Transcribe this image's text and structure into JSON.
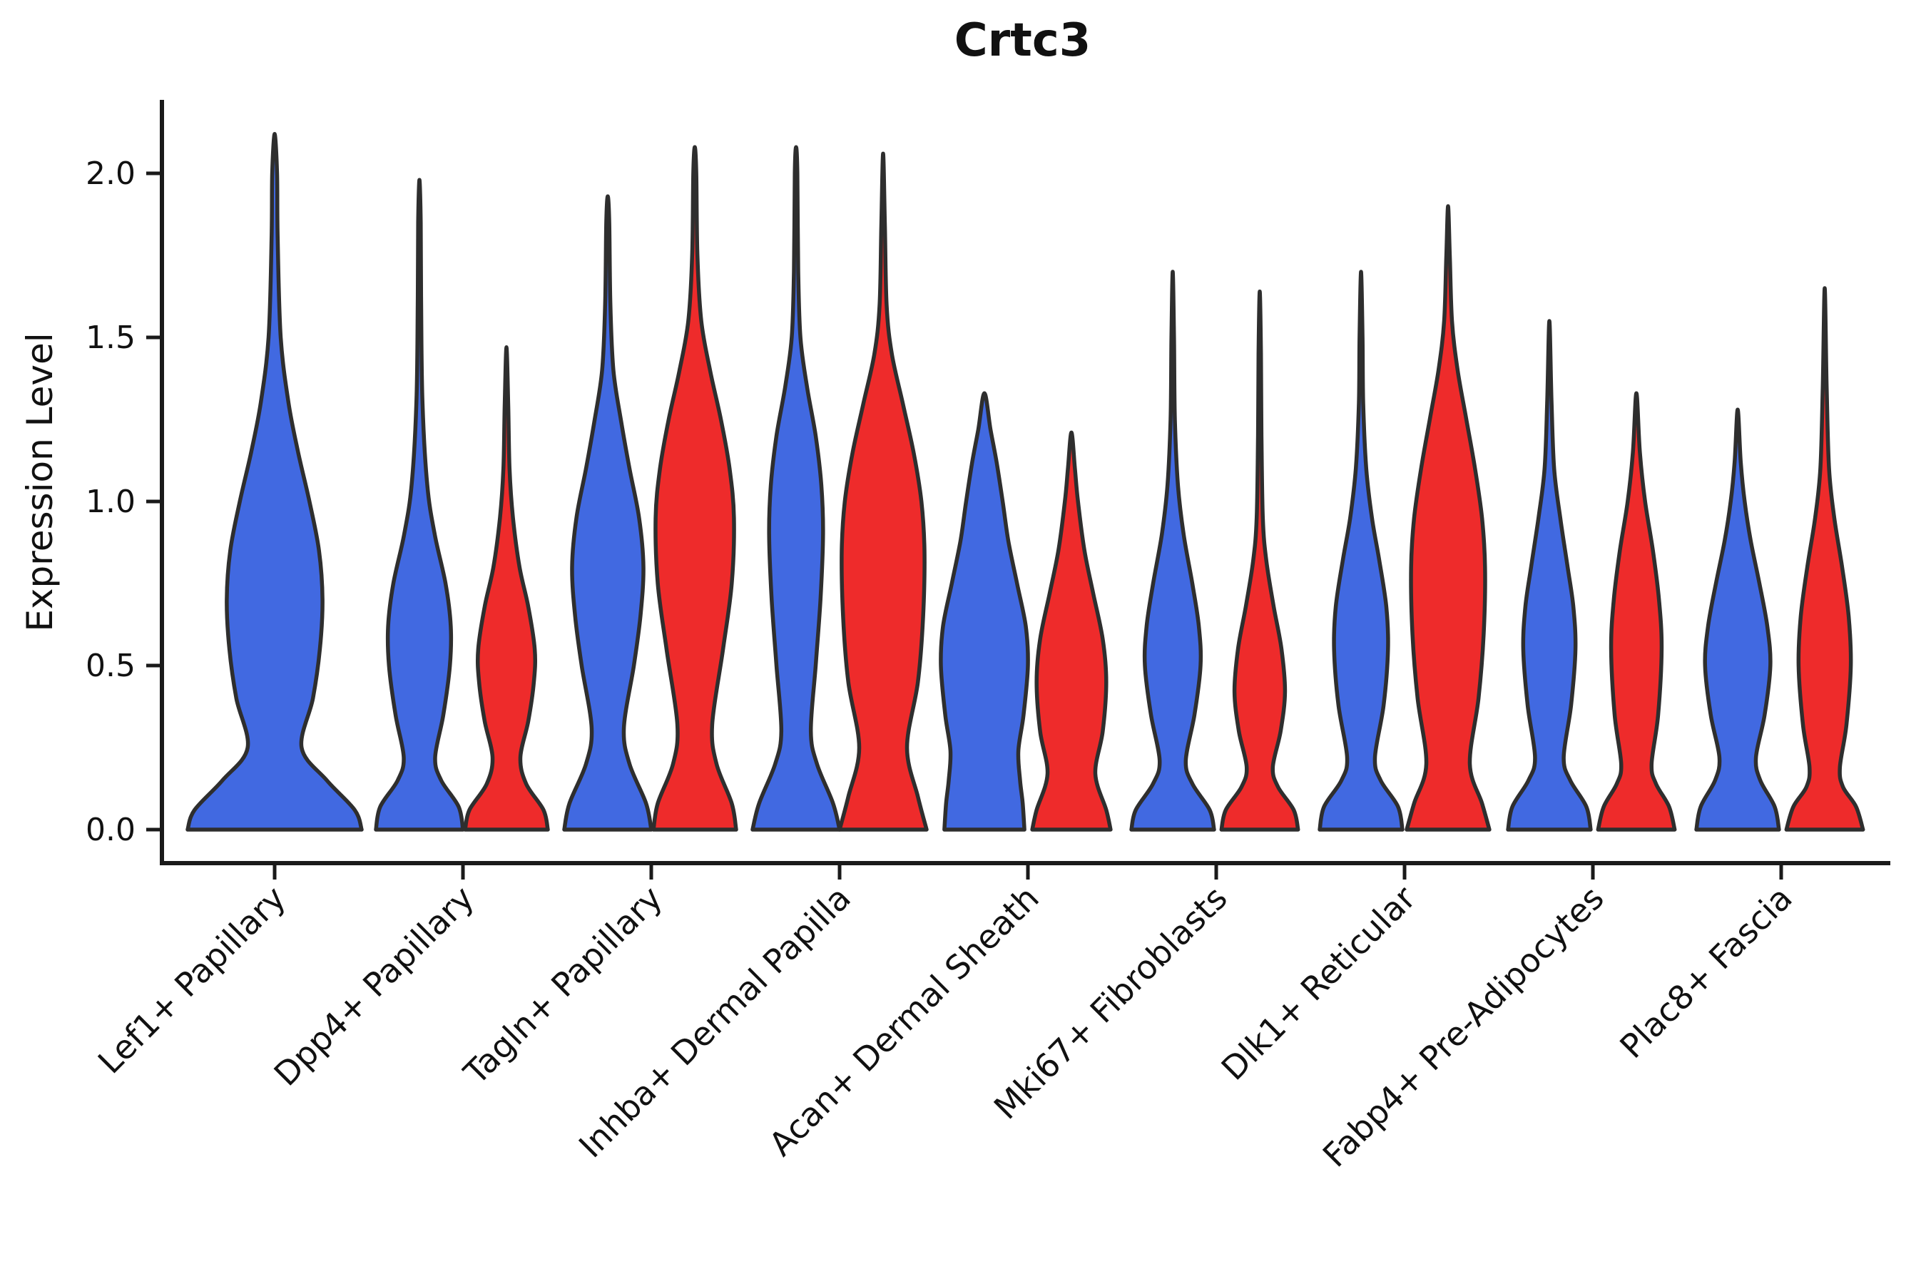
{
  "chart_data": {
    "type": "violin",
    "title": "Crtc3",
    "ylabel": "Expression Level",
    "xlabel": "",
    "grid": false,
    "legend": "none",
    "y_ticks": [
      0.0,
      0.5,
      1.0,
      1.5,
      2.0
    ],
    "y_tick_labels": [
      "0.0",
      "0.5",
      "1.0",
      "1.5",
      "2.0"
    ],
    "ylim": [
      -0.1,
      2.22
    ],
    "categories": [
      "Lef1+ Papillary",
      "Dpp4+ Papillary",
      "Tagln+ Papillary",
      "Inhba+ Dermal Papilla",
      "Acan+ Dermal Sheath",
      "Mki67+ Fibroblasts",
      "Dlk1+ Reticular",
      "Fabp4+ Pre-Adipocytes",
      "Plac8+ Fascia"
    ],
    "groups": [
      {
        "name": "group-blue",
        "color": "#4169E1"
      },
      {
        "name": "group-red",
        "color": "#EE2B2B"
      }
    ],
    "outline_color": "#2E2E2E",
    "axis_color": "#1a1a1a",
    "violins": [
      {
        "cat": 0,
        "group": 0,
        "offset": 0,
        "width_scale": 2,
        "max_value": 2.12,
        "profile": [
          [
            0,
            1
          ],
          [
            0.06,
            0.92
          ],
          [
            0.15,
            0.6
          ],
          [
            0.25,
            0.31
          ],
          [
            0.4,
            0.44
          ],
          [
            0.55,
            0.52
          ],
          [
            0.7,
            0.55
          ],
          [
            0.85,
            0.51
          ],
          [
            1,
            0.4
          ],
          [
            1.15,
            0.27
          ],
          [
            1.3,
            0.16
          ],
          [
            1.5,
            0.07
          ],
          [
            1.8,
            0.035
          ],
          [
            2,
            0.028
          ],
          [
            2.12,
            0
          ]
        ]
      },
      {
        "cat": 1,
        "group": 0,
        "offset": -1,
        "width_scale": 1,
        "max_value": 1.98,
        "profile": [
          [
            0,
            1
          ],
          [
            0.07,
            0.9
          ],
          [
            0.15,
            0.5
          ],
          [
            0.22,
            0.36
          ],
          [
            0.35,
            0.55
          ],
          [
            0.5,
            0.7
          ],
          [
            0.62,
            0.72
          ],
          [
            0.75,
            0.6
          ],
          [
            0.9,
            0.35
          ],
          [
            1.05,
            0.18
          ],
          [
            1.3,
            0.07
          ],
          [
            1.6,
            0.04
          ],
          [
            1.85,
            0.03
          ],
          [
            1.98,
            0
          ]
        ]
      },
      {
        "cat": 1,
        "group": 1,
        "offset": 1,
        "width_scale": 1,
        "max_value": 1.47,
        "profile": [
          [
            0,
            0.95
          ],
          [
            0.06,
            0.85
          ],
          [
            0.14,
            0.45
          ],
          [
            0.22,
            0.32
          ],
          [
            0.33,
            0.5
          ],
          [
            0.45,
            0.63
          ],
          [
            0.55,
            0.65
          ],
          [
            0.68,
            0.5
          ],
          [
            0.8,
            0.3
          ],
          [
            0.95,
            0.15
          ],
          [
            1.1,
            0.07
          ],
          [
            1.3,
            0.04
          ],
          [
            1.47,
            0
          ]
        ]
      },
      {
        "cat": 2,
        "group": 0,
        "offset": -1,
        "width_scale": 1,
        "max_value": 1.93,
        "profile": [
          [
            0,
            1
          ],
          [
            0.08,
            0.88
          ],
          [
            0.2,
            0.5
          ],
          [
            0.31,
            0.37
          ],
          [
            0.5,
            0.6
          ],
          [
            0.65,
            0.75
          ],
          [
            0.8,
            0.82
          ],
          [
            0.95,
            0.72
          ],
          [
            1.1,
            0.5
          ],
          [
            1.25,
            0.3
          ],
          [
            1.4,
            0.13
          ],
          [
            1.6,
            0.06
          ],
          [
            1.85,
            0.035
          ],
          [
            1.93,
            0
          ]
        ]
      },
      {
        "cat": 2,
        "group": 1,
        "offset": 1,
        "width_scale": 1,
        "max_value": 2.08,
        "profile": [
          [
            0,
            0.95
          ],
          [
            0.08,
            0.85
          ],
          [
            0.2,
            0.5
          ],
          [
            0.32,
            0.4
          ],
          [
            0.55,
            0.65
          ],
          [
            0.75,
            0.85
          ],
          [
            0.95,
            0.9
          ],
          [
            1.1,
            0.8
          ],
          [
            1.25,
            0.6
          ],
          [
            1.4,
            0.35
          ],
          [
            1.55,
            0.15
          ],
          [
            1.75,
            0.06
          ],
          [
            2,
            0.035
          ],
          [
            2.08,
            0
          ]
        ]
      },
      {
        "cat": 3,
        "group": 0,
        "offset": -1,
        "width_scale": 1,
        "max_value": 2.08,
        "profile": [
          [
            0,
            1
          ],
          [
            0.08,
            0.85
          ],
          [
            0.2,
            0.48
          ],
          [
            0.3,
            0.34
          ],
          [
            0.5,
            0.45
          ],
          [
            0.7,
            0.56
          ],
          [
            0.9,
            0.62
          ],
          [
            1.05,
            0.58
          ],
          [
            1.2,
            0.45
          ],
          [
            1.35,
            0.25
          ],
          [
            1.5,
            0.1
          ],
          [
            1.7,
            0.05
          ],
          [
            2,
            0.03
          ],
          [
            2.08,
            0
          ]
        ]
      },
      {
        "cat": 3,
        "group": 1,
        "offset": 1,
        "width_scale": 1,
        "max_value": 2.06,
        "profile": [
          [
            0,
            1
          ],
          [
            0.1,
            0.8
          ],
          [
            0.25,
            0.55
          ],
          [
            0.45,
            0.8
          ],
          [
            0.65,
            0.92
          ],
          [
            0.85,
            0.95
          ],
          [
            1,
            0.88
          ],
          [
            1.15,
            0.7
          ],
          [
            1.3,
            0.45
          ],
          [
            1.45,
            0.2
          ],
          [
            1.6,
            0.08
          ],
          [
            1.85,
            0.04
          ],
          [
            2.06,
            0
          ]
        ]
      },
      {
        "cat": 4,
        "group": 0,
        "offset": -1,
        "width_scale": 1,
        "max_value": 1.33,
        "profile": [
          [
            0,
            0.92
          ],
          [
            0.08,
            0.88
          ],
          [
            0.15,
            0.82
          ],
          [
            0.24,
            0.78
          ],
          [
            0.35,
            0.9
          ],
          [
            0.5,
            1
          ],
          [
            0.62,
            0.95
          ],
          [
            0.75,
            0.75
          ],
          [
            0.88,
            0.55
          ],
          [
            1,
            0.42
          ],
          [
            1.12,
            0.28
          ],
          [
            1.22,
            0.14
          ],
          [
            1.33,
            0
          ]
        ]
      },
      {
        "cat": 4,
        "group": 1,
        "offset": 1,
        "width_scale": 1,
        "max_value": 1.21,
        "profile": [
          [
            0,
            0.9
          ],
          [
            0.06,
            0.8
          ],
          [
            0.17,
            0.55
          ],
          [
            0.3,
            0.72
          ],
          [
            0.45,
            0.8
          ],
          [
            0.58,
            0.72
          ],
          [
            0.72,
            0.5
          ],
          [
            0.85,
            0.3
          ],
          [
            1,
            0.15
          ],
          [
            1.1,
            0.08
          ],
          [
            1.21,
            0
          ]
        ]
      },
      {
        "cat": 5,
        "group": 0,
        "offset": -1,
        "width_scale": 1,
        "max_value": 1.7,
        "profile": [
          [
            0,
            0.95
          ],
          [
            0.06,
            0.85
          ],
          [
            0.14,
            0.45
          ],
          [
            0.21,
            0.3
          ],
          [
            0.35,
            0.5
          ],
          [
            0.5,
            0.64
          ],
          [
            0.62,
            0.6
          ],
          [
            0.75,
            0.45
          ],
          [
            0.9,
            0.25
          ],
          [
            1.05,
            0.12
          ],
          [
            1.25,
            0.05
          ],
          [
            1.5,
            0.03
          ],
          [
            1.7,
            0
          ]
        ]
      },
      {
        "cat": 5,
        "group": 1,
        "offset": 1,
        "width_scale": 1,
        "max_value": 1.64,
        "profile": [
          [
            0,
            0.88
          ],
          [
            0.06,
            0.78
          ],
          [
            0.13,
            0.42
          ],
          [
            0.19,
            0.3
          ],
          [
            0.3,
            0.48
          ],
          [
            0.42,
            0.58
          ],
          [
            0.55,
            0.5
          ],
          [
            0.68,
            0.32
          ],
          [
            0.82,
            0.15
          ],
          [
            0.95,
            0.07
          ],
          [
            1.2,
            0.04
          ],
          [
            1.45,
            0.028
          ],
          [
            1.64,
            0
          ]
        ]
      },
      {
        "cat": 6,
        "group": 0,
        "offset": -1,
        "width_scale": 1,
        "max_value": 1.7,
        "profile": [
          [
            0,
            0.95
          ],
          [
            0.07,
            0.85
          ],
          [
            0.15,
            0.45
          ],
          [
            0.22,
            0.32
          ],
          [
            0.38,
            0.52
          ],
          [
            0.55,
            0.62
          ],
          [
            0.68,
            0.58
          ],
          [
            0.82,
            0.42
          ],
          [
            0.95,
            0.25
          ],
          [
            1.1,
            0.12
          ],
          [
            1.3,
            0.05
          ],
          [
            1.5,
            0.035
          ],
          [
            1.7,
            0
          ]
        ]
      },
      {
        "cat": 6,
        "group": 1,
        "offset": 1,
        "width_scale": 1,
        "max_value": 1.9,
        "profile": [
          [
            0,
            0.95
          ],
          [
            0.08,
            0.78
          ],
          [
            0.2,
            0.5
          ],
          [
            0.4,
            0.7
          ],
          [
            0.6,
            0.82
          ],
          [
            0.8,
            0.85
          ],
          [
            0.95,
            0.78
          ],
          [
            1.1,
            0.62
          ],
          [
            1.25,
            0.42
          ],
          [
            1.4,
            0.22
          ],
          [
            1.55,
            0.09
          ],
          [
            1.75,
            0.04
          ],
          [
            1.9,
            0
          ]
        ]
      },
      {
        "cat": 7,
        "group": 0,
        "offset": -1,
        "width_scale": 1,
        "max_value": 1.55,
        "profile": [
          [
            0,
            0.95
          ],
          [
            0.07,
            0.85
          ],
          [
            0.15,
            0.48
          ],
          [
            0.22,
            0.33
          ],
          [
            0.38,
            0.5
          ],
          [
            0.55,
            0.6
          ],
          [
            0.68,
            0.55
          ],
          [
            0.8,
            0.42
          ],
          [
            0.95,
            0.25
          ],
          [
            1.1,
            0.11
          ],
          [
            1.3,
            0.05
          ],
          [
            1.55,
            0
          ]
        ]
      },
      {
        "cat": 7,
        "group": 1,
        "offset": 1,
        "width_scale": 1,
        "max_value": 1.33,
        "profile": [
          [
            0,
            0.88
          ],
          [
            0.07,
            0.75
          ],
          [
            0.14,
            0.45
          ],
          [
            0.2,
            0.35
          ],
          [
            0.35,
            0.5
          ],
          [
            0.55,
            0.58
          ],
          [
            0.7,
            0.52
          ],
          [
            0.85,
            0.38
          ],
          [
            1,
            0.2
          ],
          [
            1.15,
            0.08
          ],
          [
            1.33,
            0
          ]
        ]
      },
      {
        "cat": 8,
        "group": 0,
        "offset": -1,
        "width_scale": 1,
        "max_value": 1.28,
        "profile": [
          [
            0,
            0.95
          ],
          [
            0.07,
            0.85
          ],
          [
            0.15,
            0.52
          ],
          [
            0.22,
            0.42
          ],
          [
            0.35,
            0.62
          ],
          [
            0.5,
            0.75
          ],
          [
            0.62,
            0.68
          ],
          [
            0.75,
            0.5
          ],
          [
            0.88,
            0.3
          ],
          [
            1,
            0.16
          ],
          [
            1.12,
            0.07
          ],
          [
            1.28,
            0
          ]
        ]
      },
      {
        "cat": 8,
        "group": 1,
        "offset": 1,
        "width_scale": 1,
        "max_value": 1.65,
        "profile": [
          [
            0,
            0.88
          ],
          [
            0.07,
            0.72
          ],
          [
            0.13,
            0.42
          ],
          [
            0.19,
            0.35
          ],
          [
            0.32,
            0.5
          ],
          [
            0.5,
            0.6
          ],
          [
            0.65,
            0.55
          ],
          [
            0.8,
            0.4
          ],
          [
            0.95,
            0.22
          ],
          [
            1.1,
            0.1
          ],
          [
            1.35,
            0.045
          ],
          [
            1.65,
            0
          ]
        ]
      }
    ]
  }
}
